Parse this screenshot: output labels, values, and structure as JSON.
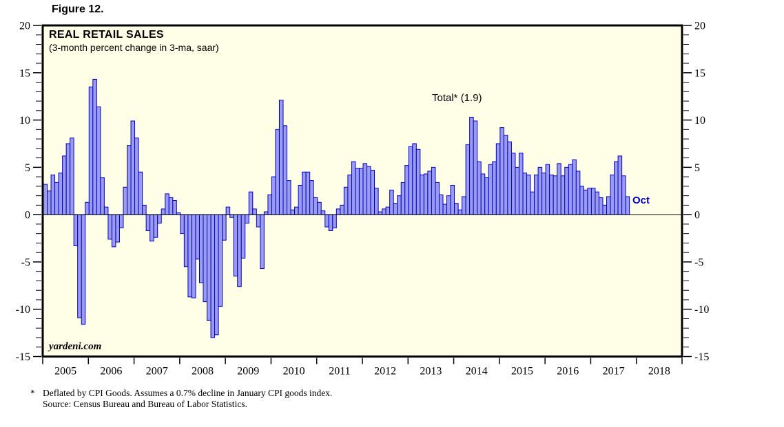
{
  "figure_label": "Figure 12.",
  "chart": {
    "title": "REAL RETAIL SALES",
    "subtitle": "(3-month percent change in 3-ma, saar)",
    "annotation": "Total* (1.9)",
    "last_point_label": "Oct",
    "watermark": "yardeni.com",
    "colors": {
      "plot_background": "#FFFFE8",
      "bar_fill": "#9B9BEF",
      "bar_border": "#0000C8",
      "axis": "#000000",
      "last_point_label_color": "#0000CC"
    }
  },
  "footnote": {
    "marker": "*",
    "line1": "Deflated by CPI Goods. Assumes a 0.7% decline in January CPI goods index.",
    "line2": "Source: Census Bureau and Bureau of Labor Statistics."
  },
  "chart_data": {
    "type": "bar",
    "title": "REAL RETAIL SALES",
    "subtitle": "(3-month percent change in 3-ma, saar)",
    "frequency": "monthly",
    "start": "2005-01",
    "end": "2017-10",
    "xlabel": "",
    "ylabel": "3-month percent change in 3-ma, saar",
    "ylim": [
      -15,
      20
    ],
    "y_major_ticks": [
      20,
      15,
      10,
      5,
      0,
      -5,
      -10,
      -15
    ],
    "y_minor_step": 1,
    "x_axis_years": [
      2005,
      2006,
      2007,
      2008,
      2009,
      2010,
      2011,
      2012,
      2013,
      2014,
      2015,
      2016,
      2017,
      2018
    ],
    "annotation": {
      "text": "Total* (1.9)",
      "latest_value": 1.9,
      "latest_month": "Oct"
    },
    "grid": false,
    "legend": "none",
    "values": [
      3.2,
      2.5,
      4.2,
      3.4,
      4.4,
      6.2,
      7.5,
      8.1,
      -3.3,
      -10.9,
      -11.6,
      1.3,
      13.5,
      14.3,
      11.4,
      3.9,
      0.8,
      -2.6,
      -3.4,
      -2.9,
      -1.4,
      2.9,
      7.3,
      9.9,
      8.1,
      4.5,
      1.0,
      -1.7,
      -2.8,
      -2.4,
      -0.9,
      0.6,
      2.2,
      1.8,
      1.5,
      0.2,
      -2.0,
      -5.5,
      -8.7,
      -8.8,
      -4.7,
      -7.2,
      -9.2,
      -11.2,
      -13.0,
      -12.7,
      -9.7,
      -2.7,
      0.8,
      -0.3,
      -6.5,
      -7.6,
      -4.6,
      -0.9,
      2.4,
      0.6,
      -1.3,
      -5.7,
      0.3,
      2.1,
      4.0,
      9.0,
      12.1,
      9.4,
      3.6,
      0.5,
      0.8,
      3.1,
      4.5,
      4.5,
      3.6,
      1.8,
      1.3,
      0.4,
      -1.3,
      -1.7,
      -1.4,
      0.6,
      1.0,
      2.9,
      4.2,
      5.6,
      4.9,
      4.9,
      5.4,
      5.1,
      4.7,
      2.8,
      0.3,
      0.6,
      0.8,
      2.6,
      1.2,
      2.0,
      3.4,
      5.2,
      7.2,
      7.5,
      6.9,
      4.2,
      4.3,
      4.6,
      5.0,
      3.4,
      2.1,
      1.1,
      2.0,
      3.1,
      1.2,
      0.5,
      1.9,
      7.4,
      10.3,
      9.9,
      5.6,
      4.3,
      3.9,
      5.3,
      5.6,
      7.5,
      9.2,
      8.4,
      7.7,
      6.5,
      5.0,
      6.5,
      4.4,
      4.2,
      2.4,
      4.2,
      5.0,
      4.4,
      5.3,
      4.2,
      4.1,
      5.4,
      4.1,
      5.0,
      5.3,
      5.8,
      4.6,
      3.0,
      2.6,
      2.8,
      2.8,
      2.4,
      1.8,
      1.0,
      1.9,
      4.2,
      5.6,
      6.2,
      4.1,
      1.9
    ]
  }
}
